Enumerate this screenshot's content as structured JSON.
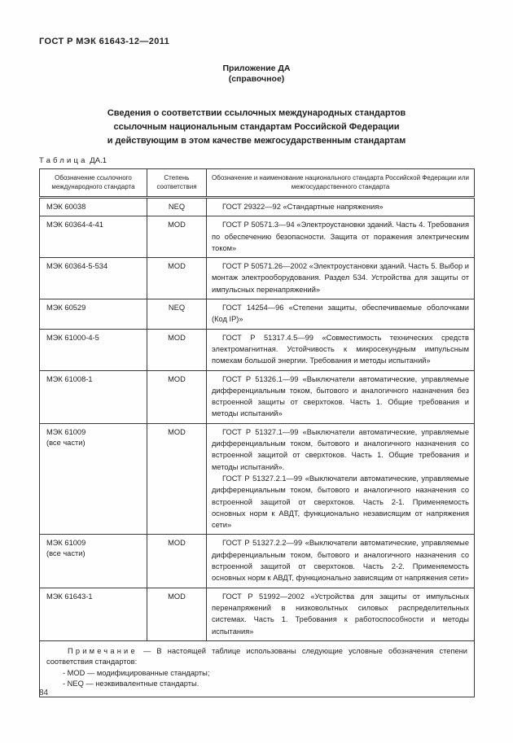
{
  "page": {
    "header": "ГОСТ Р МЭК 61643-12—2011",
    "appendix_title": "Приложение ДА",
    "appendix_subtitle": "(справочное)",
    "title_lines": [
      "Сведения о соответствии ссылочных международных стандартов",
      "ссылочным национальным стандартам Российской Федерации",
      "и действующим в этом качестве межгосударственным стандартам"
    ],
    "page_number": "84"
  },
  "table": {
    "label_word": "Таблица",
    "label_number": "ДА.1",
    "columns": [
      "Обозначение ссылочного международного стандарта",
      "Степень соответствия",
      "Обозначение и наименование национального стандарта Российской Федерации или межгосударственного стандарта"
    ],
    "rows": [
      {
        "standard": [
          "МЭК 60038"
        ],
        "degree": "NEQ",
        "paragraphs": [
          "ГОСТ 29322—92 «Стандартные напряжения»"
        ]
      },
      {
        "standard": [
          "МЭК 60364-4-41"
        ],
        "degree": "MOD",
        "paragraphs": [
          "ГОСТ Р 50571.3—94 «Электроустановки зданий. Часть 4. Требования по обеспечению безопасности. Защита от поражения электрическим током»"
        ]
      },
      {
        "standard": [
          "МЭК 60364-5-534"
        ],
        "degree": "MOD",
        "paragraphs": [
          "ГОСТ Р 50571.26—2002 «Электроустановки зданий. Часть 5. Выбор и монтаж электрооборудования. Раздел 534. Устройства для защиты от импульсных перенапряжений»"
        ]
      },
      {
        "standard": [
          "МЭК 60529"
        ],
        "degree": "NEQ",
        "paragraphs": [
          "ГОСТ 14254—96 «Степени защиты, обеспечиваемые оболочками (Код IP)»"
        ]
      },
      {
        "standard": [
          "МЭК 61000-4-5"
        ],
        "degree": "MOD",
        "paragraphs": [
          "ГОСТ Р 51317.4.5—99 «Совместимость технических средств электромагнитная. Устойчивость к микросекундным импульсным помехам большой энергии. Требования и методы испытаний»"
        ]
      },
      {
        "standard": [
          "МЭК 61008-1"
        ],
        "degree": "MOD",
        "paragraphs": [
          "ГОСТ Р 51326.1—99 «Выключатели автоматические, управляемые дифференциальным током, бытового и аналогичного назначения без встроенной защиты от сверхтоков. Часть 1. Общие требования и методы испытаний»"
        ]
      },
      {
        "standard": [
          "МЭК 61009",
          "(все части)"
        ],
        "degree": "MOD",
        "paragraphs": [
          "ГОСТ Р 51327.1—99 «Выключатели автоматические, управляемые дифференциальным током, бытового и аналогичного назначения со встроенной защитой от сверхтоков. Часть 1. Общие требования и методы испытаний».",
          "ГОСТ Р 51327.2.1—99 «Выключатели автоматические, управляемые дифференциальным током, бытового и аналогичного назначения со встроенной защитой от сверхтоков. Часть 2-1. Применяемость основных норм к АВДТ, функционально независящим от напряжения сети»"
        ]
      },
      {
        "standard": [
          "МЭК 61009",
          "(все части)"
        ],
        "degree": "MOD",
        "paragraphs": [
          "ГОСТ Р 51327.2.2—99 «Выключатели автоматические, управляемые дифференциальным током, бытового и аналогичного назначения со встроенной защитой от сверхтоков. Часть 2-2. Применяемость основных норм к АВДТ, функционально зависящим от напряжения сети»"
        ]
      },
      {
        "standard": [
          "МЭК 61643-1"
        ],
        "degree": "MOD",
        "paragraphs": [
          "ГОСТ Р 51992—2002 «Устройства для защиты от импульсных перенапряжений в низковольтных силовых распределительных системах. Часть 1. Требования к работоспособности и методы испытания»"
        ]
      }
    ],
    "note": {
      "label": "Примечание",
      "text": "— В настоящей таблице использованы следующие условные обозначения степени соответствия стандартов:",
      "items": [
        "- MOD — модифицированные стандарты;",
        "- NEQ — неэквивалентные стандарты."
      ]
    }
  }
}
